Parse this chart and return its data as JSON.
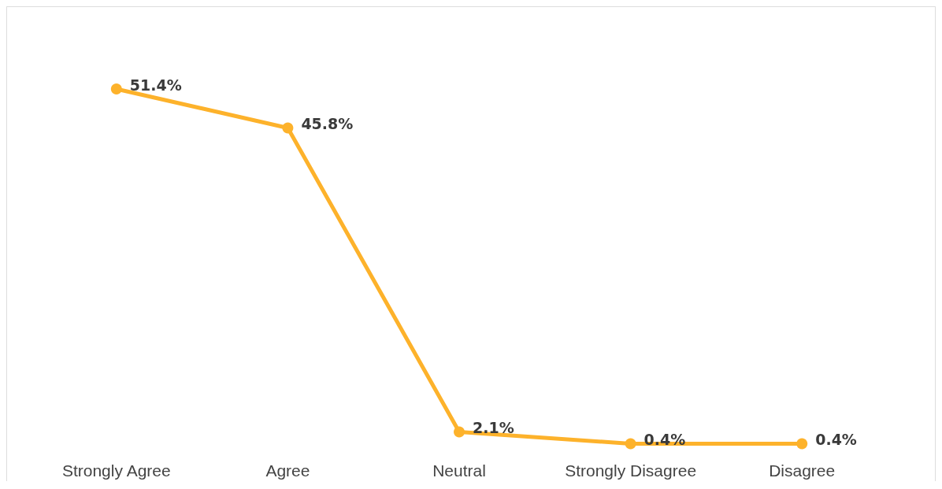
{
  "chart_data": {
    "type": "line",
    "categories": [
      "Strongly Agree",
      "Agree",
      "Neutral",
      "Strongly Disagree",
      "Disagree"
    ],
    "series": [
      {
        "color": "#fdb22b",
        "values": [
          51.4,
          45.8,
          2.1,
          0.4,
          0.4
        ],
        "value_labels": [
          "51.4%",
          "45.8%",
          "2.1%",
          "0.4%",
          "0.4%"
        ]
      }
    ],
    "marker": "circle"
  }
}
